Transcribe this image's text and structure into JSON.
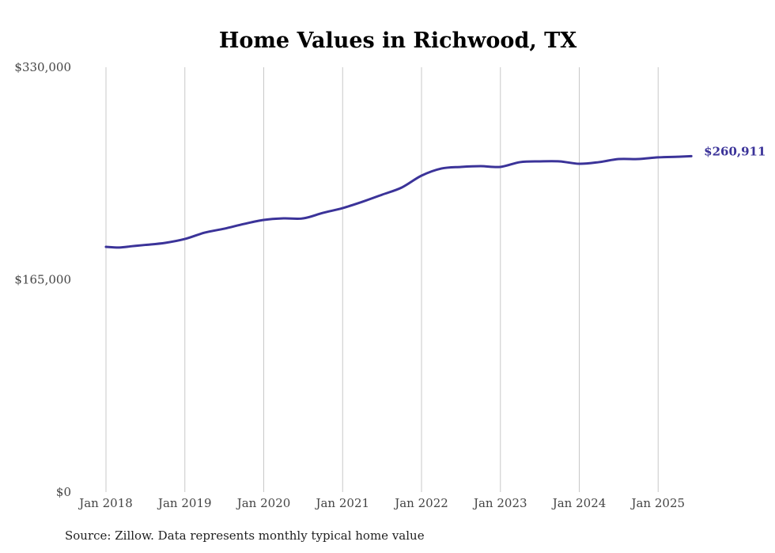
{
  "chart_data": {
    "type": "line",
    "title": "Home Values in Richwood, TX",
    "xlabel": "",
    "ylabel": "",
    "ylim": [
      0,
      330000
    ],
    "xlim": [
      2018.0,
      2025.42
    ],
    "y_ticks": [
      {
        "value": 0,
        "label": "$0"
      },
      {
        "value": 165000,
        "label": "$165,000"
      },
      {
        "value": 330000,
        "label": "$330,000"
      }
    ],
    "x_ticks": [
      {
        "value": 2018,
        "label": "Jan 2018"
      },
      {
        "value": 2019,
        "label": "Jan 2019"
      },
      {
        "value": 2020,
        "label": "Jan 2020"
      },
      {
        "value": 2021,
        "label": "Jan 2021"
      },
      {
        "value": 2022,
        "label": "Jan 2022"
      },
      {
        "value": 2023,
        "label": "Jan 2023"
      },
      {
        "value": 2024,
        "label": "Jan 2024"
      },
      {
        "value": 2025,
        "label": "Jan 2025"
      }
    ],
    "grid": "vertical",
    "series": [
      {
        "name": "Typical home value",
        "color": "#3b3399",
        "x": [
          2018.0,
          2018.17,
          2018.33,
          2018.5,
          2018.75,
          2019.0,
          2019.25,
          2019.5,
          2019.75,
          2020.0,
          2020.25,
          2020.5,
          2020.75,
          2021.0,
          2021.25,
          2021.5,
          2021.75,
          2022.0,
          2022.25,
          2022.5,
          2022.75,
          2023.0,
          2023.25,
          2023.5,
          2023.75,
          2024.0,
          2024.25,
          2024.5,
          2024.75,
          2025.0,
          2025.25,
          2025.42
        ],
        "values": [
          190500,
          190000,
          191000,
          192000,
          193600,
          196600,
          201500,
          204600,
          208300,
          211400,
          212600,
          212600,
          216900,
          220600,
          225500,
          231000,
          236600,
          245800,
          251300,
          252600,
          253200,
          252600,
          256300,
          256900,
          256900,
          255000,
          256300,
          258700,
          258700,
          260000,
          260500,
          260911
        ]
      }
    ],
    "end_label": "$260,911"
  },
  "source": "Source: Zillow. Data represents monthly typical home value"
}
